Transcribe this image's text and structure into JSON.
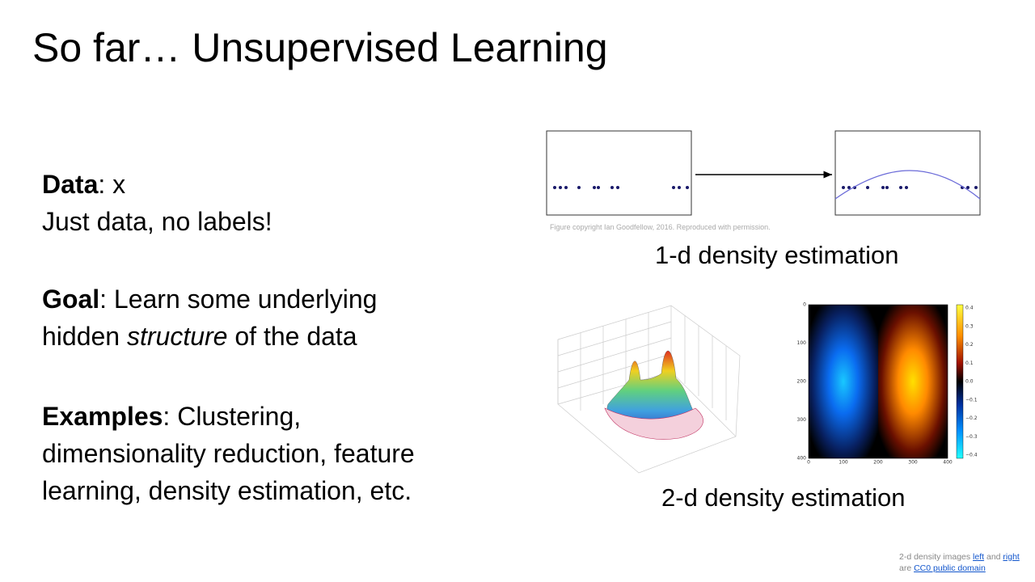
{
  "title": "So far… Unsupervised Learning",
  "body": {
    "data": {
      "term": "Data",
      "rest": ": x",
      "line2": "Just data, no labels!"
    },
    "goal": {
      "term": "Goal",
      "rest": ": Learn some underlying",
      "line2_start": "hidden ",
      "line2_italic": "structure",
      "line2_end": " of the data"
    },
    "examples": {
      "term": "Examples",
      "rest": ": Clustering,",
      "line2": "dimensionality reduction, feature",
      "line3": "learning, density estimation, etc."
    }
  },
  "figure_1d": {
    "credit": "Figure copyright Ian Goodfellow, 2016. Reproduced with permission.",
    "caption": "1-d density estimation"
  },
  "figure_2d": {
    "caption": "2-d density estimation",
    "heatmap_yticks": [
      "0",
      "100",
      "200",
      "300",
      "400"
    ],
    "heatmap_xticks": [
      "0",
      "100",
      "200",
      "300",
      "400"
    ],
    "colorbar_ticks": [
      "0.4",
      "0.3",
      "0.2",
      "0.1",
      "0.0",
      "−0.1",
      "−0.2",
      "−0.3",
      "−0.4"
    ]
  },
  "footer": {
    "line1_start": "2-d density images ",
    "link_left": "left",
    "and": " and ",
    "link_right": "right",
    "line2_start": "are ",
    "link_cc0": "CC0 public domain"
  }
}
